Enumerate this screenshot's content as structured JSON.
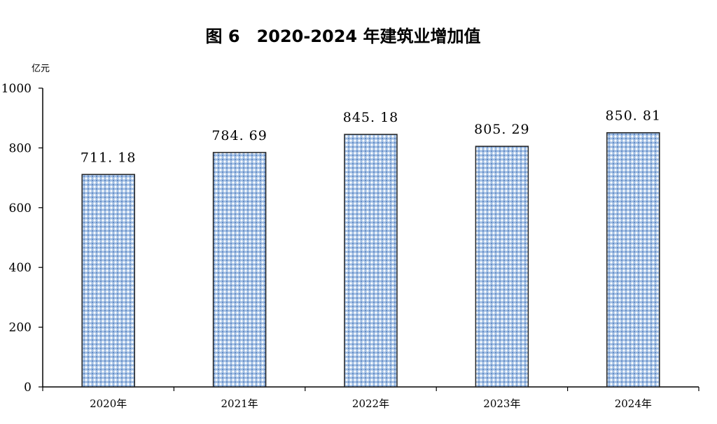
{
  "chart_data": {
    "type": "bar",
    "title": "图 6　2020-2024 年建筑业增加值",
    "ylabel": "亿元",
    "xlabel": "",
    "categories": [
      "2020年",
      "2021年",
      "2022年",
      "2023年",
      "2024年"
    ],
    "values": [
      711.18,
      784.69,
      845.18,
      805.29,
      850.81
    ],
    "value_labels": [
      "711. 18",
      "784. 69",
      "845. 18",
      "805. 29",
      "850. 81"
    ],
    "ylim": [
      0,
      1000
    ],
    "yticks": [
      "0",
      "200",
      "400",
      "600",
      "800",
      "1000"
    ],
    "grid": false,
    "legend": "none",
    "bar_color": "#a8c3e6",
    "bar_pattern_color": "#ffffff",
    "bar_border": "#222222"
  }
}
